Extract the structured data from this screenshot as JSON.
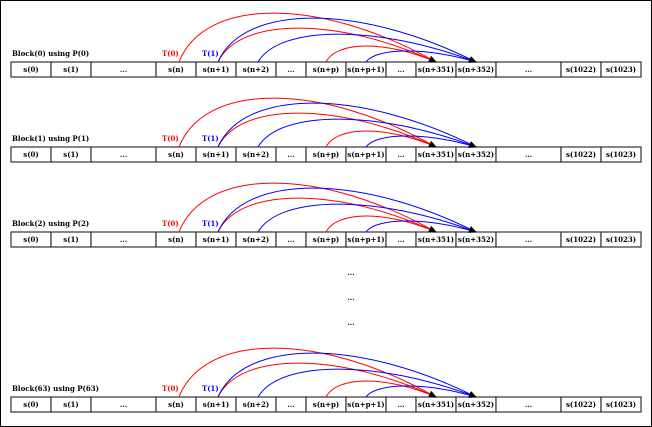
{
  "cells": [
    "s(0)",
    "s(1)",
    "...",
    "s(n)",
    "s(n+1)",
    "s(n+2)",
    "...",
    "s(n+p)",
    "s(n+p+1)",
    "...",
    "s(n+351)",
    "s(n+352)",
    "...",
    "s(1022)",
    "s(1023)"
  ],
  "blocks": [
    {
      "label": "Block(0) using P(0)"
    },
    {
      "label": "Block(1) using P(1)"
    },
    {
      "label": "Block(2) using P(2)"
    },
    {
      "label": "Block(63) using P(63)"
    }
  ],
  "thread_labels": [
    {
      "text": "T(0)",
      "color": "#ff0000"
    },
    {
      "text": "T(1)",
      "color": "#0000ff"
    }
  ],
  "ellipsis": [
    "...",
    "...",
    "..."
  ],
  "colors": {
    "thread0": "#ff0000",
    "thread1": "#0000ff",
    "arrowhead": "#000000"
  },
  "arcs": [
    {
      "from": "s(n)",
      "to": "s(n+351)",
      "thread": "T(0)"
    },
    {
      "from": "s(n+1)",
      "to": "s(n+351)",
      "thread": "T(0)"
    },
    {
      "from": "s(n+p)",
      "to": "s(n+351)",
      "thread": "T(0)"
    },
    {
      "from": "s(n+1)",
      "to": "s(n+352)",
      "thread": "T(1)"
    },
    {
      "from": "s(n+2)",
      "to": "s(n+352)",
      "thread": "T(1)"
    },
    {
      "from": "s(n+p+1)",
      "to": "s(n+352)",
      "thread": "T(1)"
    }
  ]
}
